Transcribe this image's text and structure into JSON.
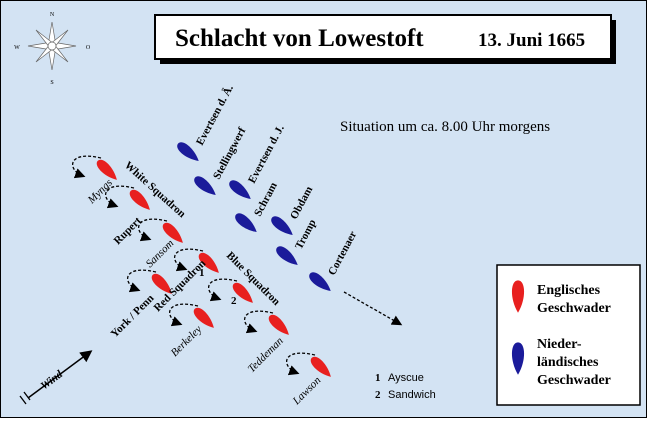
{
  "header": {
    "title": "Schlacht von Lowestoft",
    "date": "13. Juni 1665"
  },
  "situation": "Situation um ca. 8.00 Uhr morgens",
  "compass": {
    "n": "N",
    "s": "S",
    "w": "W",
    "o": "O"
  },
  "dutch_labels": [
    "Evertsen d. Ä.",
    "Stellingwerf",
    "Evertsen d. J.",
    "Schram",
    "Obdam",
    "Tromp",
    "Cortenaer"
  ],
  "english_labels": [
    "Myngs",
    "Rupert",
    "Sansom",
    "York / Penn",
    "Berkeley",
    "Teddeman",
    "Lawson"
  ],
  "squadrons": [
    "White Squadron",
    "Blue Squadron",
    "Red Squadron"
  ],
  "markers": [
    {
      "number": "1",
      "name": "Ayscue"
    },
    {
      "number": "2",
      "name": "Sandwich"
    }
  ],
  "wind": "Wind",
  "legend": [
    {
      "lines": [
        "Englisches",
        "Geschwader"
      ]
    },
    {
      "lines": [
        "Nieder-",
        "ländisches",
        "Geschwader"
      ]
    }
  ]
}
